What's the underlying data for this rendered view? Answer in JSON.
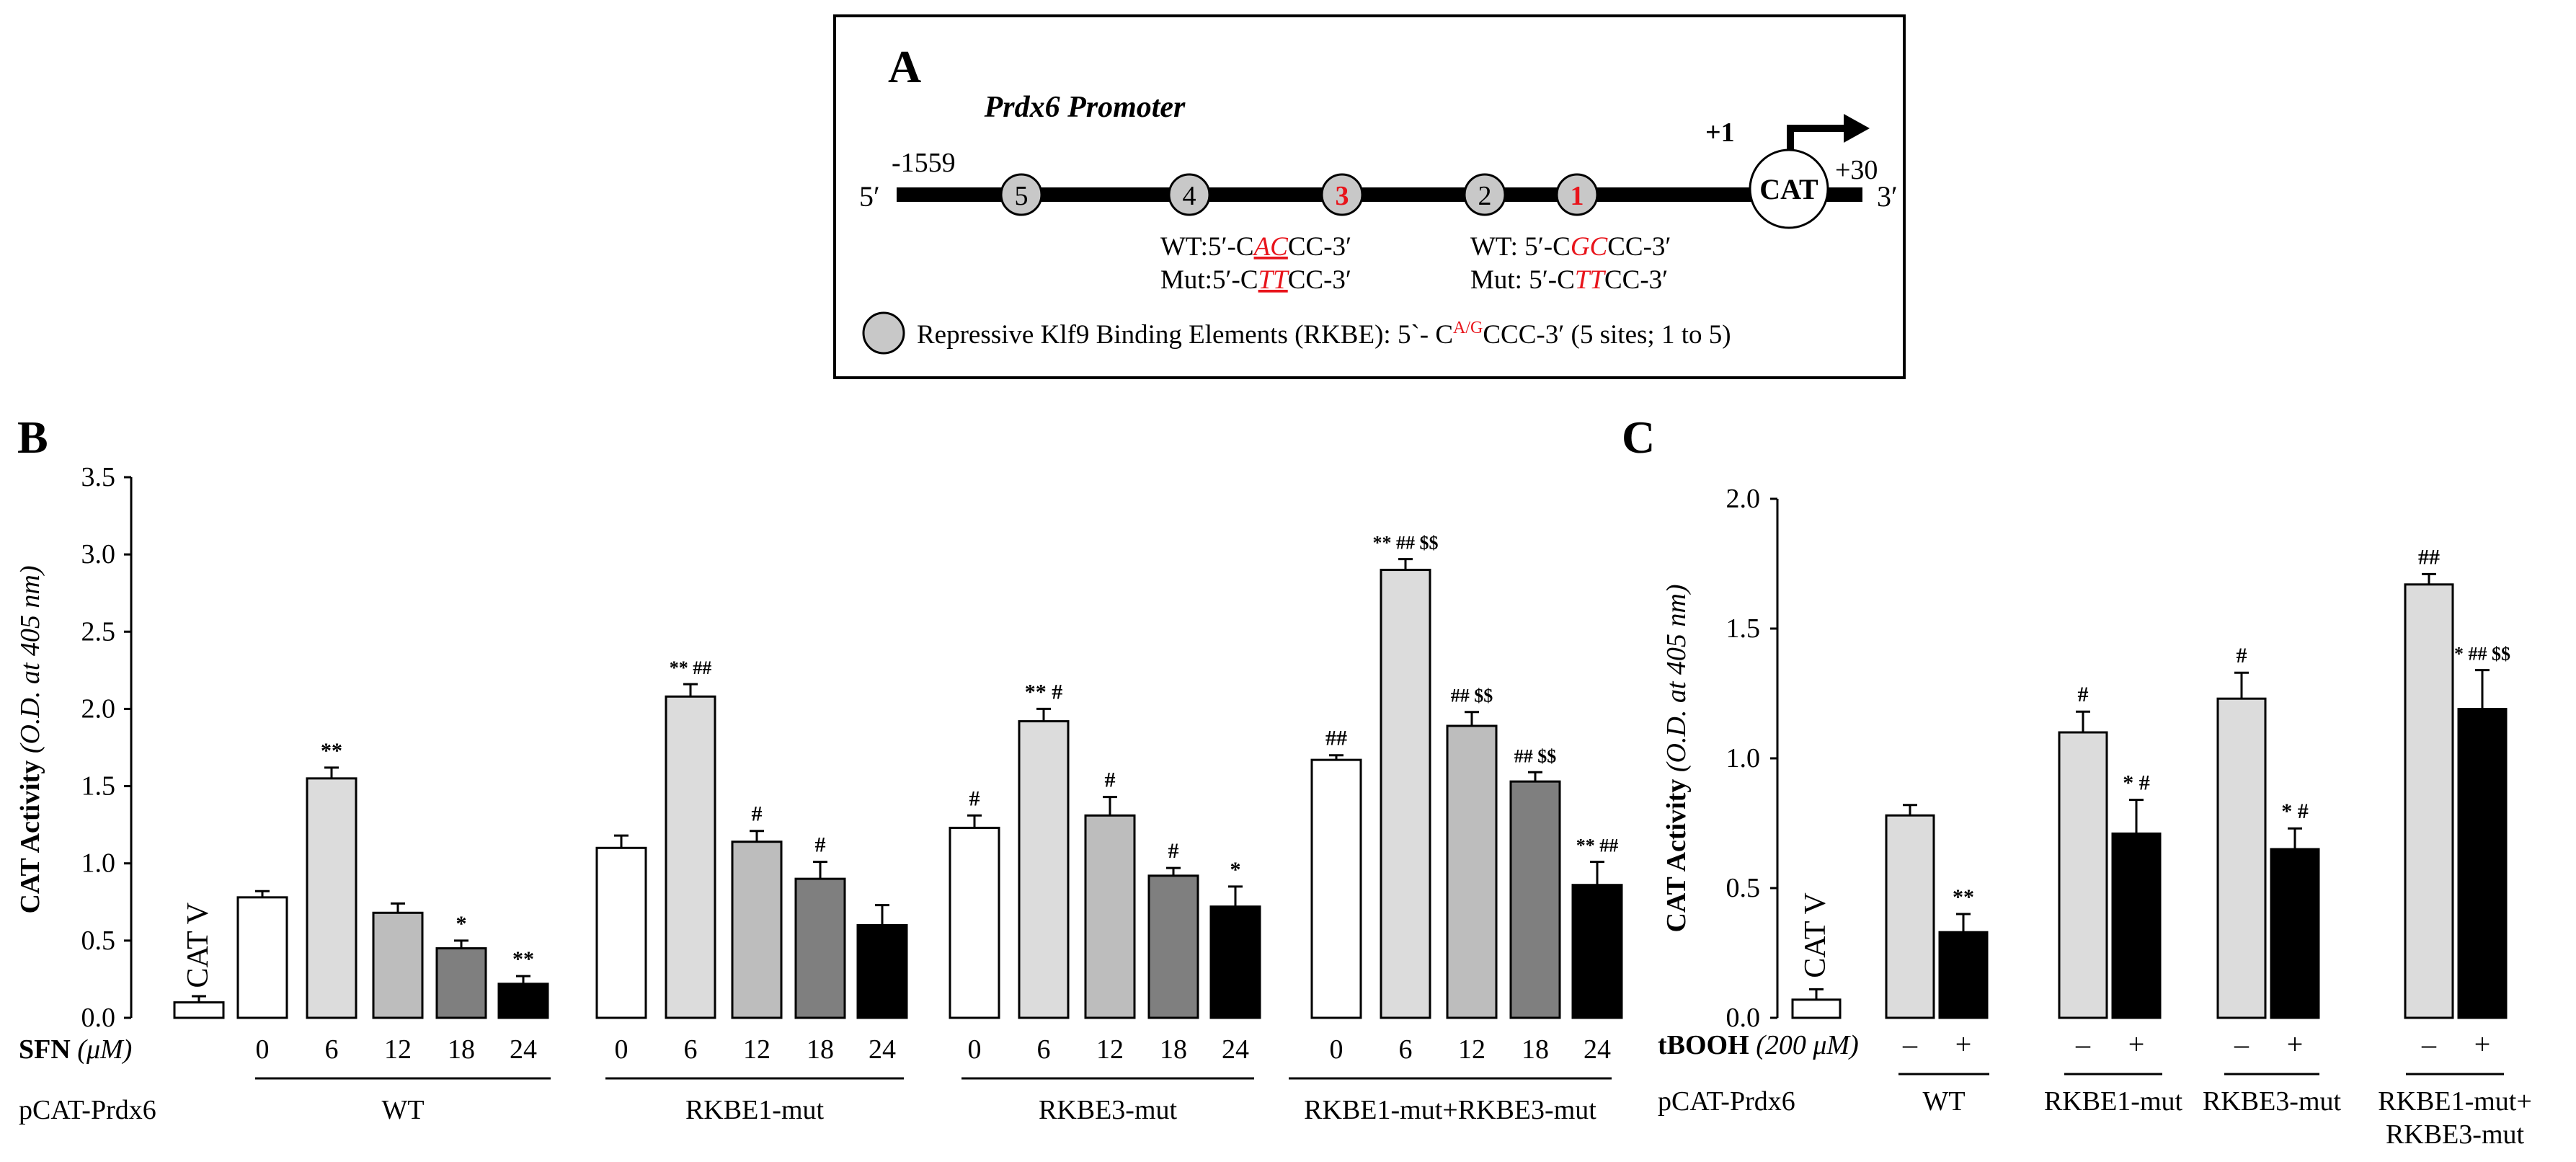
{
  "colors": {
    "white": "#ffffff",
    "light_gray": "#dcdcdc",
    "mid_gray": "#bdbdbd",
    "dark_gray": "#7f7f7f",
    "black": "#000000",
    "red": "#e8141b",
    "site_fill": "#c8c8c8"
  },
  "panel_a": {
    "letter": "A",
    "title": "Prdx6 Promoter",
    "start_label": "-1559",
    "five_prime": "5′",
    "three_prime": "3′",
    "plus_one": "+1",
    "plus_thirty": "+30",
    "cat_label": "CAT",
    "sites": [
      {
        "label": "5",
        "highlight": false
      },
      {
        "label": "4",
        "highlight": false
      },
      {
        "label": "3",
        "highlight": true
      },
      {
        "label": "2",
        "highlight": false
      },
      {
        "label": "1",
        "highlight": true
      }
    ],
    "site3": {
      "wt_prefix": "WT:5′-C",
      "wt_mut": "AC",
      "wt_suffix": "CC-3′",
      "mut_prefix": "Mut:5′-C",
      "mut_mut": "TT",
      "mut_suffix": "CC-3′"
    },
    "site1": {
      "wt_prefix": "WT: 5′-C",
      "wt_mut": "GC",
      "wt_suffix": "CC-3′",
      "mut_prefix": "Mut: 5′-C",
      "mut_mut": "TT",
      "mut_suffix": "CC-3′"
    },
    "legend": {
      "prefix": "Repressive Klf9 Binding Elements (RKBE): 5`- C",
      "sup": "A/G",
      "suffix": "CCC-3′ (5 sites; 1 to 5)"
    }
  },
  "chart_data": [
    {
      "type": "bar",
      "panel": "B",
      "ylabel_bold": "CAT Activity",
      "ylabel_italic": "(O.D. at 405 nm)",
      "ylim": [
        0,
        3.5
      ],
      "yticks": [
        "0.0",
        "0.5",
        "1.0",
        "1.5",
        "2.0",
        "2.5",
        "3.0",
        "3.5"
      ],
      "control": {
        "label": "CAT V",
        "value": 0.1,
        "error": 0.04
      },
      "treatment_label_bold": "SFN",
      "treatment_label_unit": "(μM)",
      "construct_label": "pCAT-Prdx6",
      "doses": [
        "0",
        "6",
        "12",
        "18",
        "24"
      ],
      "groups": [
        {
          "name": "WT",
          "values": [
            0.78,
            1.55,
            0.68,
            0.45,
            0.22
          ],
          "errors": [
            0.04,
            0.07,
            0.06,
            0.05,
            0.05
          ],
          "annotations": [
            "",
            "**",
            "",
            "*",
            "**"
          ]
        },
        {
          "name": "RKBE1-mut",
          "values": [
            1.1,
            2.08,
            1.14,
            0.9,
            0.6
          ],
          "errors": [
            0.08,
            0.08,
            0.07,
            0.11,
            0.13
          ],
          "annotations": [
            "",
            "** ##",
            "#",
            "#",
            ""
          ]
        },
        {
          "name": "RKBE3-mut",
          "values": [
            1.23,
            1.92,
            1.31,
            0.92,
            0.72
          ],
          "errors": [
            0.08,
            0.08,
            0.12,
            0.05,
            0.13
          ],
          "annotations": [
            "#",
            "** #",
            "#",
            "#",
            "*"
          ]
        },
        {
          "name": "RKBE1-mut+RKBE3-mut",
          "values": [
            1.67,
            2.9,
            1.89,
            1.53,
            0.86
          ],
          "errors": [
            0.03,
            0.07,
            0.09,
            0.06,
            0.15
          ],
          "annotations": [
            "##",
            "** ## $$",
            "## $$",
            "## $$",
            "** ##"
          ]
        }
      ]
    },
    {
      "type": "bar",
      "panel": "C",
      "ylabel_bold": "CAT Activity",
      "ylabel_italic": "(O.D. at 405 nm)",
      "ylim": [
        0,
        2.0
      ],
      "yticks": [
        "0.0",
        "0.5",
        "1.0",
        "1.5",
        "2.0"
      ],
      "control": {
        "label": "CAT V",
        "value": 0.07,
        "error": 0.04
      },
      "treatment_label_bold": "tBOOH",
      "treatment_label_unit": "(200 μM)",
      "construct_label": "pCAT-Prdx6",
      "conditions": [
        "–",
        "+"
      ],
      "groups": [
        {
          "name": "WT",
          "name_line2": "",
          "values": [
            0.78,
            0.33
          ],
          "errors": [
            0.04,
            0.07
          ],
          "annotations": [
            "",
            "**"
          ]
        },
        {
          "name": "RKBE1-mut",
          "name_line2": "",
          "values": [
            1.1,
            0.71
          ],
          "errors": [
            0.08,
            0.13
          ],
          "annotations": [
            "#",
            "* #"
          ]
        },
        {
          "name": "RKBE3-mut",
          "name_line2": "",
          "values": [
            1.23,
            0.65
          ],
          "errors": [
            0.1,
            0.08
          ],
          "annotations": [
            "#",
            "* #"
          ]
        },
        {
          "name": "RKBE1-mut+",
          "name_line2": "RKBE3-mut",
          "values": [
            1.67,
            1.19
          ],
          "errors": [
            0.04,
            0.15
          ],
          "annotations": [
            "##",
            "* ## $$"
          ]
        }
      ]
    }
  ]
}
